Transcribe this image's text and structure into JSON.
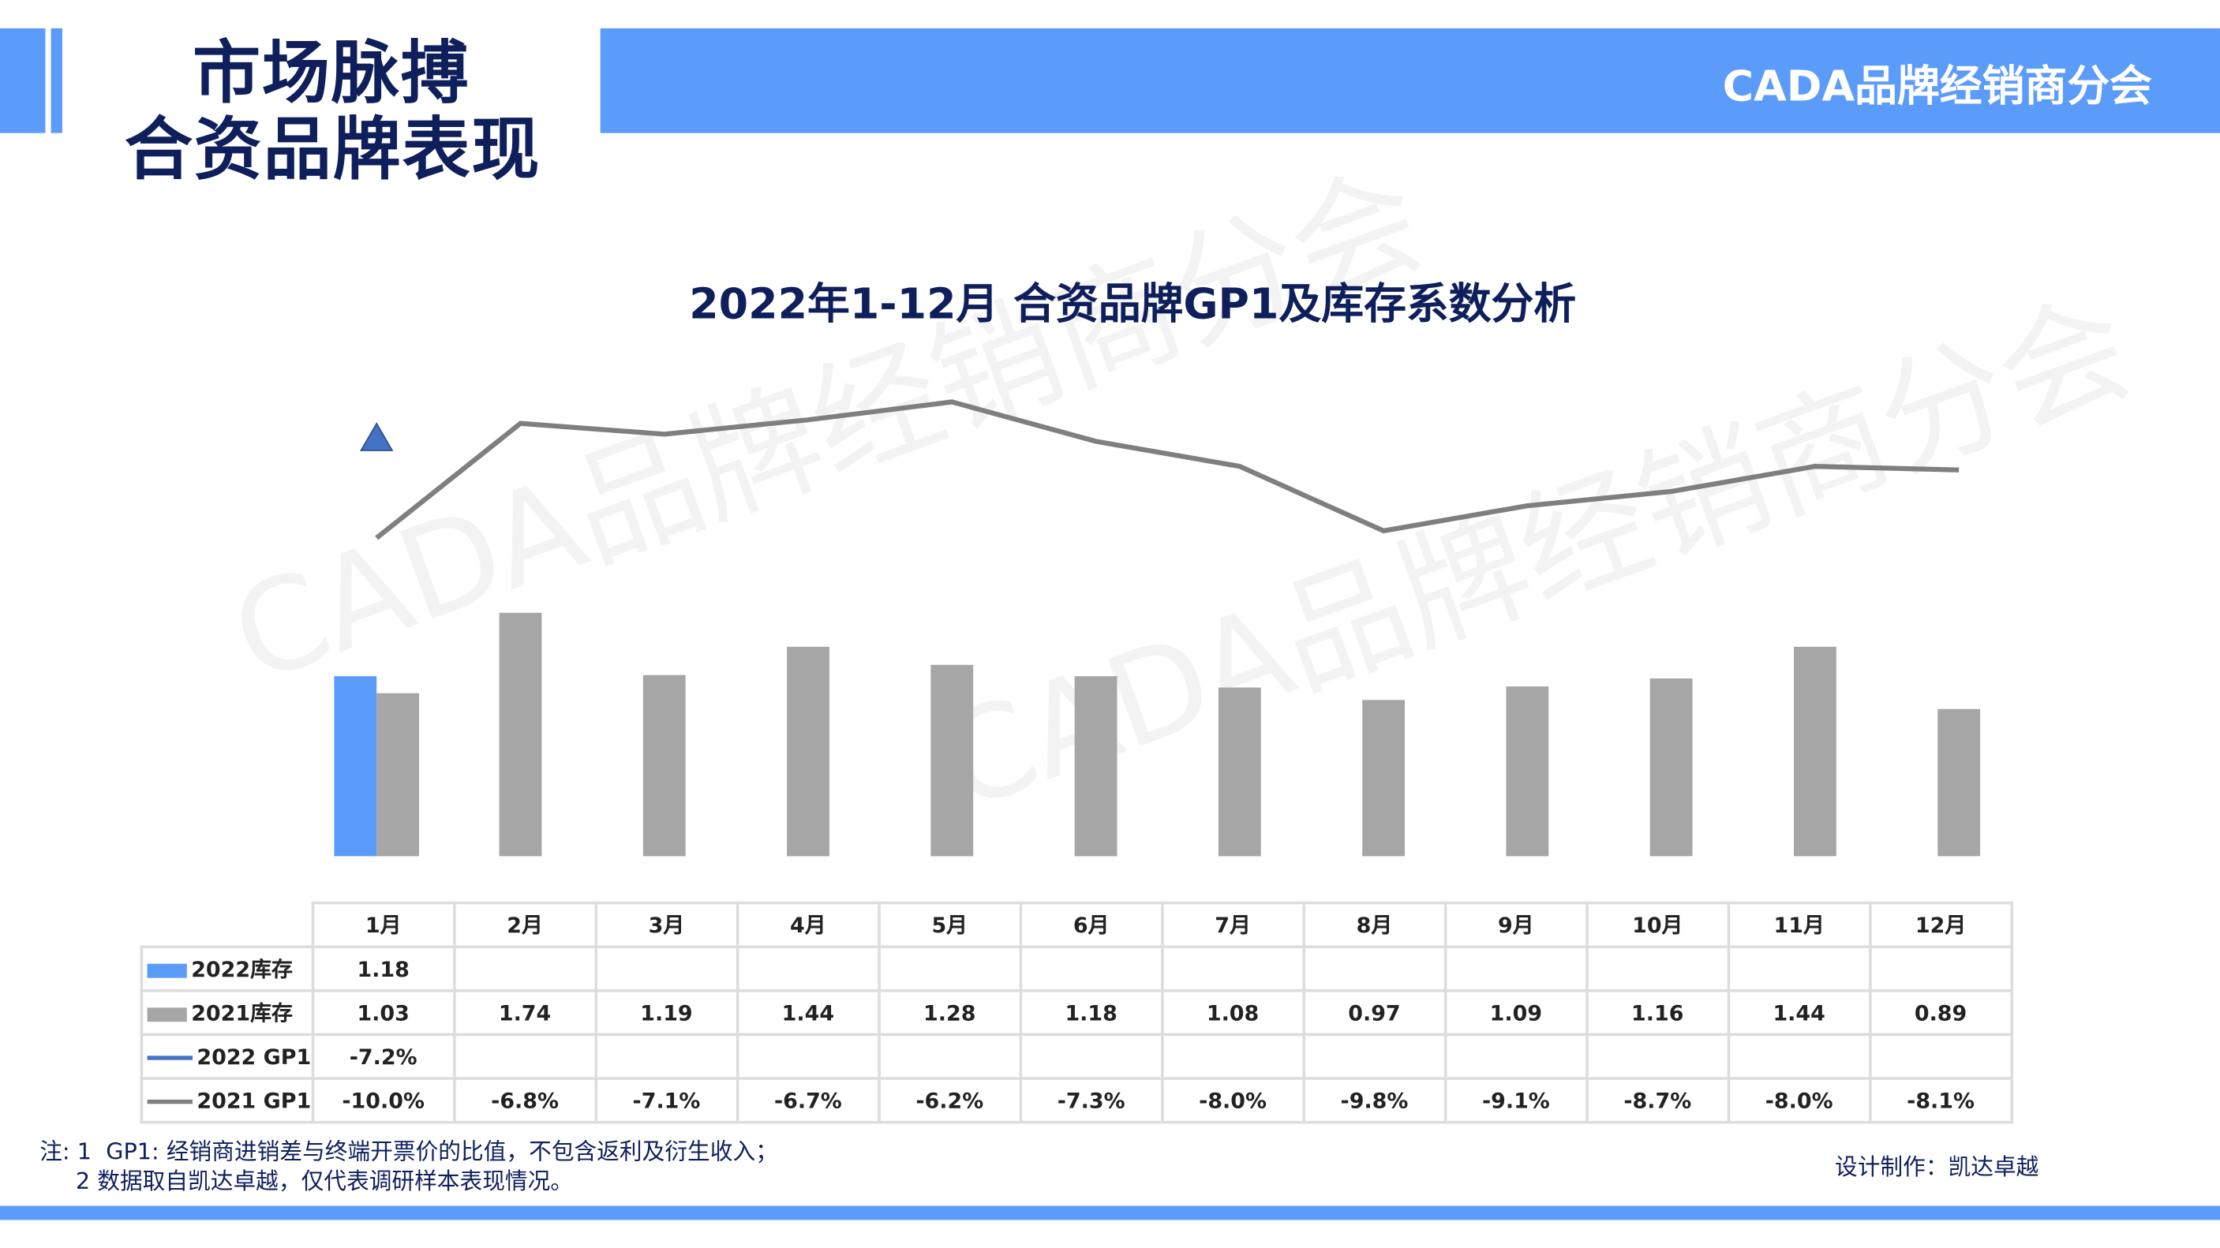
{
  "header": {
    "title_line1": "市场脉搏",
    "title_line2": "合资品牌表现",
    "brand": "CADA品牌经销商分会"
  },
  "watermark": "CADA品牌经销商分会",
  "colors": {
    "accent": "#5b9bfa",
    "bar_2021": "#a6a6a6",
    "line_2021": "#7f7f7f",
    "marker_2022": "#4472c4",
    "title": "#0e1f5c"
  },
  "chart_data": {
    "type": "bar+line",
    "title": "2022年1-12月 合资品牌GP1及库存系数分析",
    "categories": [
      "1月",
      "2月",
      "3月",
      "4月",
      "5月",
      "6月",
      "7月",
      "8月",
      "9月",
      "10月",
      "11月",
      "12月"
    ],
    "series": [
      {
        "name": "2022库存",
        "type": "bar",
        "color": "#5b9bfa",
        "values": [
          1.18,
          null,
          null,
          null,
          null,
          null,
          null,
          null,
          null,
          null,
          null,
          null
        ],
        "labels": [
          "1.18",
          "",
          "",
          "",
          "",
          "",
          "",
          "",
          "",
          "",
          "",
          ""
        ]
      },
      {
        "name": "2021库存",
        "type": "bar",
        "color": "#a6a6a6",
        "values": [
          1.03,
          1.74,
          1.19,
          1.44,
          1.28,
          1.18,
          1.08,
          0.97,
          1.09,
          1.16,
          1.44,
          0.89
        ],
        "labels": [
          "1.03",
          "1.74",
          "1.19",
          "1.44",
          "1.28",
          "1.18",
          "1.08",
          "0.97",
          "1.09",
          "1.16",
          "1.44",
          "0.89"
        ]
      },
      {
        "name": "2022 GP1",
        "type": "line",
        "color": "#4472c4",
        "values": [
          -7.2,
          null,
          null,
          null,
          null,
          null,
          null,
          null,
          null,
          null,
          null,
          null
        ],
        "labels": [
          "-7.2%",
          "",
          "",
          "",
          "",
          "",
          "",
          "",
          "",
          "",
          "",
          ""
        ]
      },
      {
        "name": "2021 GP1",
        "type": "line",
        "color": "#7f7f7f",
        "values": [
          -10.0,
          -6.8,
          -7.1,
          -6.7,
          -6.2,
          -7.3,
          -8.0,
          -9.8,
          -9.1,
          -8.7,
          -8.0,
          -8.1
        ],
        "labels": [
          "-10.0%",
          "-6.8%",
          "-7.1%",
          "-6.7%",
          "-6.2%",
          "-7.3%",
          "-8.0%",
          "-9.8%",
          "-9.1%",
          "-8.7%",
          "-8.0%",
          "-8.1%"
        ]
      }
    ],
    "legend": "data-table"
  },
  "notes": {
    "line1": "注: 1  GP1: 经销商进销差与终端开票价的比值，不包含返利及衍生收入；",
    "line2": "     2 数据取自凯达卓越，仅代表调研样本表现情况。"
  },
  "credit": "设计制作：凯达卓越"
}
